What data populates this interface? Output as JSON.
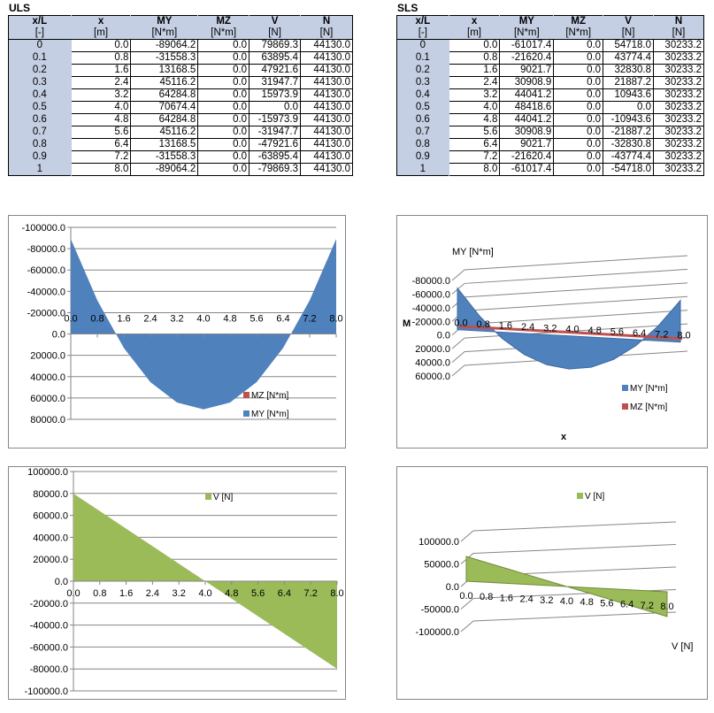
{
  "tables": {
    "uls": {
      "title": "ULS",
      "headers": [
        "x/L",
        "x",
        "MY",
        "MZ",
        "V",
        "N"
      ],
      "units": [
        "[-]",
        "[m]",
        "[N*m]",
        "[N*m]",
        "[N]",
        "[N]"
      ],
      "rows": [
        [
          "0",
          "0.0",
          "-89064.2",
          "0.0",
          "79869.3",
          "44130.0"
        ],
        [
          "0.1",
          "0.8",
          "-31558.3",
          "0.0",
          "63895.4",
          "44130.0"
        ],
        [
          "0.2",
          "1.6",
          "13168.5",
          "0.0",
          "47921.6",
          "44130.0"
        ],
        [
          "0.3",
          "2.4",
          "45116.2",
          "0.0",
          "31947.7",
          "44130.0"
        ],
        [
          "0.4",
          "3.2",
          "64284.8",
          "0.0",
          "15973.9",
          "44130.0"
        ],
        [
          "0.5",
          "4.0",
          "70674.4",
          "0.0",
          "0.0",
          "44130.0"
        ],
        [
          "0.6",
          "4.8",
          "64284.8",
          "0.0",
          "-15973.9",
          "44130.0"
        ],
        [
          "0.7",
          "5.6",
          "45116.2",
          "0.0",
          "-31947.7",
          "44130.0"
        ],
        [
          "0.8",
          "6.4",
          "13168.5",
          "0.0",
          "-47921.6",
          "44130.0"
        ],
        [
          "0.9",
          "7.2",
          "-31558.3",
          "0.0",
          "-63895.4",
          "44130.0"
        ],
        [
          "1",
          "8.0",
          "-89064.2",
          "0.0",
          "-79869.3",
          "44130.0"
        ]
      ]
    },
    "sls": {
      "title": "SLS",
      "headers": [
        "x/L",
        "x",
        "MY",
        "MZ",
        "V",
        "N"
      ],
      "units": [
        "[-]",
        "[m]",
        "[N*m]",
        "[N*m]",
        "[N]",
        "[N]"
      ],
      "rows": [
        [
          "0",
          "0.0",
          "-61017.4",
          "0.0",
          "54718.0",
          "30233.2"
        ],
        [
          "0.1",
          "0.8",
          "-21620.4",
          "0.0",
          "43774.4",
          "30233.2"
        ],
        [
          "0.2",
          "1.6",
          "9021.7",
          "0.0",
          "32830.8",
          "30233.2"
        ],
        [
          "0.3",
          "2.4",
          "30908.9",
          "0.0",
          "21887.2",
          "30233.2"
        ],
        [
          "0.4",
          "3.2",
          "44041.2",
          "0.0",
          "10943.6",
          "30233.2"
        ],
        [
          "0.5",
          "4.0",
          "48418.6",
          "0.0",
          "0.0",
          "30233.2"
        ],
        [
          "0.6",
          "4.8",
          "44041.2",
          "0.0",
          "-10943.6",
          "30233.2"
        ],
        [
          "0.7",
          "5.6",
          "30908.9",
          "0.0",
          "-21887.2",
          "30233.2"
        ],
        [
          "0.8",
          "6.4",
          "9021.7",
          "0.0",
          "-32830.8",
          "30233.2"
        ],
        [
          "0.9",
          "7.2",
          "-21620.4",
          "0.0",
          "-43774.4",
          "30233.2"
        ],
        [
          "1",
          "8.0",
          "-61017.4",
          "0.0",
          "-54718.0",
          "30233.2"
        ]
      ]
    }
  },
  "colors": {
    "header_bg": "#c5cfe4",
    "my": "#4f81bd",
    "mz": "#c0504d",
    "v": "#9bbb59"
  },
  "chart_data": [
    {
      "id": "uls-moment",
      "type": "area",
      "title": "",
      "xlabel": "",
      "ylabel": "",
      "x": [
        "0.0",
        "0.8",
        "1.6",
        "2.4",
        "3.2",
        "4.0",
        "4.8",
        "5.6",
        "6.4",
        "7.2",
        "8.0"
      ],
      "series": [
        {
          "name": "MZ [N*m]",
          "color": "#c0504d",
          "values": [
            0,
            0,
            0,
            0,
            0,
            0,
            0,
            0,
            0,
            0,
            0
          ]
        },
        {
          "name": "MY [N*m]",
          "color": "#4f81bd",
          "values": [
            -89064.2,
            -31558.3,
            13168.5,
            45116.2,
            64284.8,
            70674.4,
            64284.8,
            45116.2,
            13168.5,
            -31558.3,
            -89064.2
          ]
        }
      ],
      "ylim": [
        -100000,
        80000
      ],
      "y_reversed": true,
      "yticks": [
        "-100000.0",
        "-80000.0",
        "-60000.0",
        "-40000.0",
        "-20000.0",
        "0.0",
        "20000.0",
        "40000.0",
        "60000.0",
        "80000.0"
      ],
      "grid": true,
      "legend": "bottom-right"
    },
    {
      "id": "sls-moment",
      "type": "area",
      "style": "3d",
      "title": "",
      "xlabel": "x",
      "ylabel": "M",
      "axis_title": "MY [N*m]",
      "x": [
        "0.0",
        "0.8",
        "1.6",
        "2.4",
        "3.2",
        "4.0",
        "4.8",
        "5.6",
        "6.4",
        "7.2",
        "8.0"
      ],
      "series": [
        {
          "name": "MY [N*m]",
          "color": "#4f81bd",
          "values": [
            -61017.4,
            -21620.4,
            9021.7,
            30908.9,
            44041.2,
            48418.6,
            44041.2,
            30908.9,
            9021.7,
            -21620.4,
            -61017.4
          ]
        },
        {
          "name": "MZ [N*m]",
          "color": "#c0504d",
          "values": [
            0,
            0,
            0,
            0,
            0,
            0,
            0,
            0,
            0,
            0,
            0
          ]
        }
      ],
      "ylim": [
        -80000,
        60000
      ],
      "y_reversed": true,
      "yticks": [
        "-80000.0",
        "-60000.0",
        "-40000.0",
        "-20000.0",
        "0.0",
        "20000.0",
        "40000.0",
        "60000.0"
      ],
      "grid": true,
      "legend": "bottom-right"
    },
    {
      "id": "uls-shear",
      "type": "area",
      "title": "",
      "xlabel": "",
      "ylabel": "",
      "x": [
        "0.0",
        "0.8",
        "1.6",
        "2.4",
        "3.2",
        "4.0",
        "4.8",
        "5.6",
        "6.4",
        "7.2",
        "8.0"
      ],
      "series": [
        {
          "name": "V [N]",
          "color": "#9bbb59",
          "values": [
            79869.3,
            63895.4,
            47921.6,
            31947.7,
            15973.9,
            0.0,
            -15973.9,
            -31947.7,
            -47921.6,
            -63895.4,
            -79869.3
          ]
        }
      ],
      "ylim": [
        -100000,
        100000
      ],
      "yticks": [
        "100000.0",
        "80000.0",
        "60000.0",
        "40000.0",
        "20000.0",
        "0.0",
        "-20000.0",
        "-40000.0",
        "-60000.0",
        "-80000.0",
        "-100000.0"
      ],
      "grid": true,
      "legend": "top-center"
    },
    {
      "id": "sls-shear",
      "type": "area",
      "style": "3d",
      "title": "",
      "xlabel": "",
      "ylabel": "",
      "depth_label": "V [N]",
      "x": [
        "0.0",
        "0.8",
        "1.6",
        "2.4",
        "3.2",
        "4.0",
        "4.8",
        "5.6",
        "6.4",
        "7.2",
        "8.0"
      ],
      "series": [
        {
          "name": "V [N]",
          "color": "#9bbb59",
          "values": [
            54718.0,
            43774.4,
            32830.8,
            21887.2,
            10943.6,
            0.0,
            -10943.6,
            -21887.2,
            -32830.8,
            -43774.4,
            -54718.0
          ]
        }
      ],
      "ylim": [
        -100000,
        100000
      ],
      "yticks": [
        "100000.0",
        "50000.0",
        "0.0",
        "-50000.0",
        "-100000.0"
      ],
      "grid": true,
      "legend": "top-center"
    }
  ]
}
